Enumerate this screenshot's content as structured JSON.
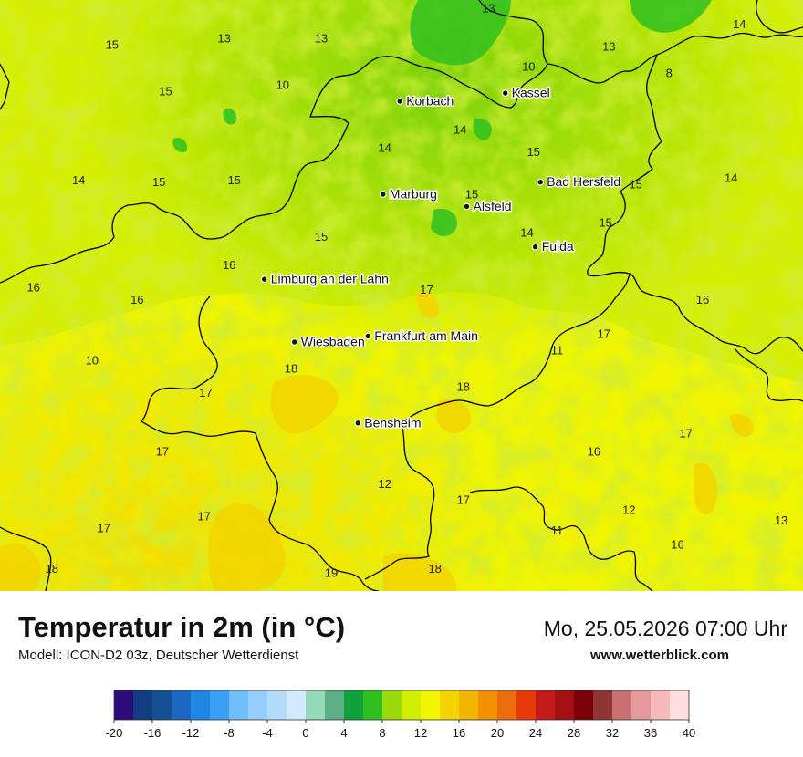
{
  "map": {
    "cities": [
      {
        "name": "Kassel",
        "lon": 9.5,
        "lat": 51.31
      },
      {
        "name": "Korbach",
        "lon": 8.87,
        "lat": 51.27
      },
      {
        "name": "Bad Hersfeld",
        "lon": 9.71,
        "lat": 50.87
      },
      {
        "name": "Marburg",
        "lon": 8.77,
        "lat": 50.81
      },
      {
        "name": "Alsfeld",
        "lon": 9.27,
        "lat": 50.75
      },
      {
        "name": "Fulda",
        "lon": 9.68,
        "lat": 50.55
      },
      {
        "name": "Limburg an der Lahn",
        "lon": 8.06,
        "lat": 50.39
      },
      {
        "name": "Frankfurt am Main",
        "lon": 8.68,
        "lat": 50.11
      },
      {
        "name": "Wiesbaden",
        "lon": 8.24,
        "lat": 50.08
      },
      {
        "name": "Bensheim",
        "lon": 8.62,
        "lat": 49.68
      }
    ],
    "temperature_labels": [
      {
        "value": "13",
        "lon": 9.4,
        "lat": 51.71
      },
      {
        "value": "14",
        "lon": 10.9,
        "lat": 51.63
      },
      {
        "value": "15",
        "lon": 7.15,
        "lat": 51.53
      },
      {
        "value": "13",
        "lon": 7.82,
        "lat": 51.56
      },
      {
        "value": "13",
        "lon": 8.4,
        "lat": 51.56
      },
      {
        "value": "13",
        "lon": 10.12,
        "lat": 51.52
      },
      {
        "value": "10",
        "lon": 9.64,
        "lat": 51.42
      },
      {
        "value": "8",
        "lon": 10.48,
        "lat": 51.39
      },
      {
        "value": "15",
        "lon": 7.47,
        "lat": 51.3
      },
      {
        "value": "10",
        "lon": 8.17,
        "lat": 51.33
      },
      {
        "value": "14",
        "lon": 9.23,
        "lat": 51.11
      },
      {
        "value": "15",
        "lon": 9.67,
        "lat": 51.0
      },
      {
        "value": "14",
        "lon": 8.78,
        "lat": 51.02
      },
      {
        "value": "14",
        "lon": 6.95,
        "lat": 50.86
      },
      {
        "value": "15",
        "lon": 7.43,
        "lat": 50.85
      },
      {
        "value": "15",
        "lon": 7.88,
        "lat": 50.86
      },
      {
        "value": "14",
        "lon": 10.85,
        "lat": 50.87
      },
      {
        "value": "15",
        "lon": 10.28,
        "lat": 50.84
      },
      {
        "value": "15",
        "lon": 9.3,
        "lat": 50.79
      },
      {
        "value": "15",
        "lon": 10.1,
        "lat": 50.65
      },
      {
        "value": "14",
        "lon": 9.63,
        "lat": 50.6
      },
      {
        "value": "15",
        "lon": 8.4,
        "lat": 50.58
      },
      {
        "value": "16",
        "lon": 7.85,
        "lat": 50.44
      },
      {
        "value": "16",
        "lon": 6.68,
        "lat": 50.33
      },
      {
        "value": "17",
        "lon": 9.03,
        "lat": 50.32
      },
      {
        "value": "16",
        "lon": 7.3,
        "lat": 50.27
      },
      {
        "value": "16",
        "lon": 10.68,
        "lat": 50.27
      },
      {
        "value": "17",
        "lon": 10.09,
        "lat": 50.1
      },
      {
        "value": "11",
        "lon": 9.81,
        "lat": 50.02
      },
      {
        "value": "10",
        "lon": 7.03,
        "lat": 49.97
      },
      {
        "value": "18",
        "lon": 8.22,
        "lat": 49.93
      },
      {
        "value": "18",
        "lon": 9.25,
        "lat": 49.84
      },
      {
        "value": "17",
        "lon": 7.71,
        "lat": 49.81
      },
      {
        "value": "17",
        "lon": 10.58,
        "lat": 49.61
      },
      {
        "value": "17",
        "lon": 7.45,
        "lat": 49.52
      },
      {
        "value": "16",
        "lon": 10.03,
        "lat": 49.52
      },
      {
        "value": "12",
        "lon": 8.78,
        "lat": 49.36
      },
      {
        "value": "17",
        "lon": 9.25,
        "lat": 49.28
      },
      {
        "value": "12",
        "lon": 10.24,
        "lat": 49.23
      },
      {
        "value": "13",
        "lon": 11.15,
        "lat": 49.18
      },
      {
        "value": "17",
        "lon": 7.7,
        "lat": 49.2
      },
      {
        "value": "17",
        "lon": 7.1,
        "lat": 49.14
      },
      {
        "value": "11",
        "lon": 9.81,
        "lat": 49.13
      },
      {
        "value": "16",
        "lon": 10.53,
        "lat": 49.06
      },
      {
        "value": "18",
        "lon": 6.79,
        "lat": 48.94
      },
      {
        "value": "19",
        "lon": 8.46,
        "lat": 48.92
      },
      {
        "value": "18",
        "lon": 9.08,
        "lat": 48.94
      }
    ]
  },
  "footer": {
    "title": "Temperatur in 2m (in °C)",
    "model": "Modell: ICON-D2 03z, Deutscher Wetterdienst",
    "datetime": "Mo, 25.05.2026 07:00 Uhr",
    "website": "www.wetterblick.com"
  },
  "legend": {
    "ticks": [
      "-20",
      "-16",
      "-12",
      "-8",
      "-4",
      "0",
      "4",
      "8",
      "12",
      "16",
      "20",
      "24",
      "28",
      "32",
      "36",
      "40"
    ],
    "colors": [
      "#2e0a7a",
      "#123d80",
      "#174f95",
      "#1d66c2",
      "#1f86e6",
      "#3aa0f5",
      "#70bdfb",
      "#95cefb",
      "#b3dcfc",
      "#d2e9fd",
      "#94dab8",
      "#5eae86",
      "#11a03a",
      "#2fc01f",
      "#9ad90b",
      "#d1ef02",
      "#f2f500",
      "#f2d500",
      "#f2b500",
      "#f29000",
      "#ef6c0e",
      "#e8390d",
      "#c31a1a",
      "#a40f12",
      "#7a0005",
      "#8f3535",
      "#c77272",
      "#e49a9a",
      "#f6baba",
      "#fedddd"
    ]
  }
}
